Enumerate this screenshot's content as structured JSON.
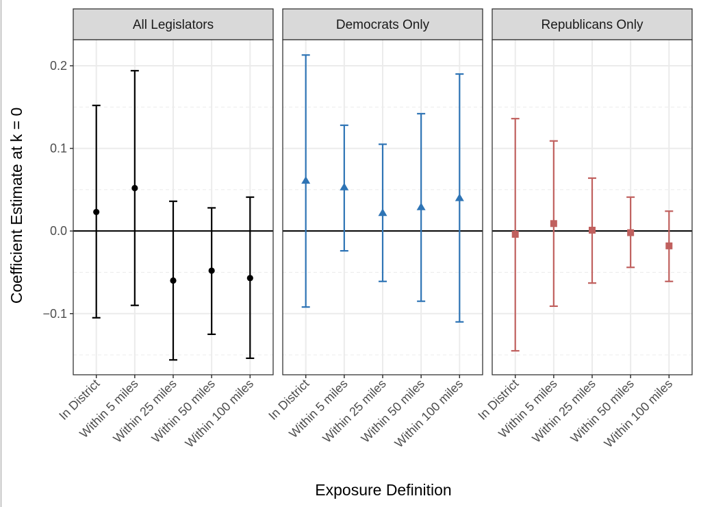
{
  "chart_data": {
    "type": "errorbar",
    "title": "",
    "xlabel": "Exposure Definition",
    "ylabel": "Coefficient Estimate at k = 0",
    "ylim": [
      -0.174,
      0.2315
    ],
    "yticks": [
      -0.1,
      0.0,
      0.1,
      0.2
    ],
    "ytick_labels": [
      "-0.1",
      "0.0",
      "0.1",
      "0.2"
    ],
    "minor_y_gridlines": [
      -0.15,
      -0.05,
      0.05,
      0.15
    ],
    "reference_line_y": 0,
    "grid": true,
    "legend": "none",
    "categories": [
      "In District",
      "Within 5 miles",
      "Within 25 miles",
      "Within 50 miles",
      "Within 100 miles"
    ],
    "panels": [
      {
        "name": "All Legislators",
        "color": "#000000",
        "marker": "circle",
        "estimates": [
          0.023,
          0.052,
          -0.06,
          -0.048,
          -0.057
        ],
        "lower": [
          -0.105,
          -0.09,
          -0.156,
          -0.125,
          -0.154
        ],
        "upper": [
          0.152,
          0.194,
          0.036,
          0.028,
          0.041
        ]
      },
      {
        "name": "Democrats Only",
        "color": "#2e74b5",
        "marker": "triangle",
        "estimates": [
          0.061,
          0.053,
          0.022,
          0.029,
          0.04
        ],
        "lower": [
          -0.092,
          -0.024,
          -0.061,
          -0.085,
          -0.11
        ],
        "upper": [
          0.213,
          0.128,
          0.105,
          0.142,
          0.19
        ]
      },
      {
        "name": "Republicans Only",
        "color": "#c0605e",
        "marker": "square",
        "estimates": [
          -0.004,
          0.009,
          0.001,
          -0.002,
          -0.018
        ],
        "lower": [
          -0.145,
          -0.091,
          -0.063,
          -0.044,
          -0.061
        ],
        "upper": [
          0.136,
          0.109,
          0.064,
          0.041,
          0.024
        ]
      }
    ]
  }
}
